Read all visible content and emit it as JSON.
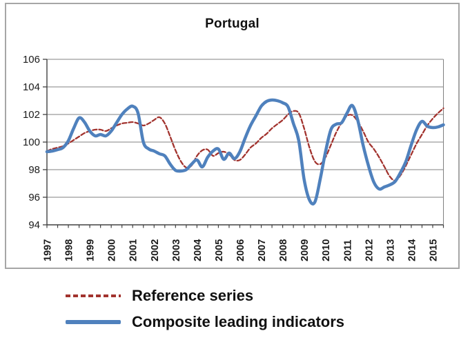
{
  "chart_data": {
    "type": "line",
    "title": "Portugal",
    "xlabel": "",
    "ylabel": "",
    "ylim": [
      94,
      106
    ],
    "y_ticks": [
      94,
      96,
      98,
      100,
      102,
      104,
      106
    ],
    "x_tick_years": [
      "1997",
      "1998",
      "1999",
      "2000",
      "2001",
      "2002",
      "2003",
      "2004",
      "2005",
      "2006",
      "2007",
      "2008",
      "2009",
      "2010",
      "2011",
      "2012",
      "2013",
      "2014",
      "2015"
    ],
    "x_start": 1997.0,
    "x_step_years": 0.25,
    "x_end": 2015.5,
    "grid": true,
    "legend_position": "below-chart",
    "series": [
      {
        "name": "Reference series",
        "style": "dashed",
        "color": "#A2332E",
        "values": [
          99.35,
          99.5,
          99.6,
          99.7,
          99.9,
          100.15,
          100.4,
          100.65,
          100.8,
          100.9,
          100.9,
          100.8,
          101.0,
          101.2,
          101.35,
          101.4,
          101.45,
          101.35,
          101.2,
          101.35,
          101.6,
          101.8,
          101.35,
          100.4,
          99.4,
          98.6,
          98.15,
          98.3,
          99.0,
          99.4,
          99.45,
          99.0,
          99.2,
          99.3,
          99.1,
          98.7,
          98.7,
          99.1,
          99.6,
          99.9,
          100.3,
          100.6,
          101.0,
          101.3,
          101.6,
          102.0,
          102.25,
          102.1,
          101.0,
          99.6,
          98.6,
          98.4,
          98.9,
          99.8,
          100.7,
          101.4,
          101.9,
          101.95,
          101.5,
          100.8,
          100.0,
          99.5,
          98.9,
          98.2,
          97.5,
          97.2,
          97.6,
          98.3,
          99.1,
          99.9,
          100.55,
          101.2,
          101.7,
          102.1,
          102.45
        ]
      },
      {
        "name": "Composite leading indicators",
        "style": "solid",
        "color": "#4F81BD",
        "values": [
          99.3,
          99.35,
          99.45,
          99.6,
          100.1,
          101.0,
          101.75,
          101.45,
          100.8,
          100.45,
          100.55,
          100.45,
          100.8,
          101.4,
          102.0,
          102.4,
          102.6,
          102.1,
          100.0,
          99.5,
          99.35,
          99.15,
          99.0,
          98.4,
          97.95,
          97.9,
          98.0,
          98.4,
          98.7,
          98.2,
          98.9,
          99.35,
          99.5,
          98.75,
          99.2,
          98.8,
          99.3,
          100.3,
          101.2,
          101.9,
          102.6,
          102.95,
          103.05,
          103.0,
          102.85,
          102.55,
          101.35,
          100.1,
          97.3,
          95.8,
          95.65,
          97.3,
          99.3,
          100.9,
          101.3,
          101.4,
          102.1,
          102.65,
          101.6,
          99.8,
          98.3,
          97.1,
          96.6,
          96.75,
          96.9,
          97.15,
          97.8,
          98.6,
          99.8,
          100.9,
          101.5,
          101.15,
          101.05,
          101.1,
          101.25
        ]
      }
    ]
  },
  "colors": {
    "grid_line": "#808080",
    "axis_line": "#404040",
    "frame_border": "#A6A6A6",
    "tick_text": "#1A1A1A"
  }
}
